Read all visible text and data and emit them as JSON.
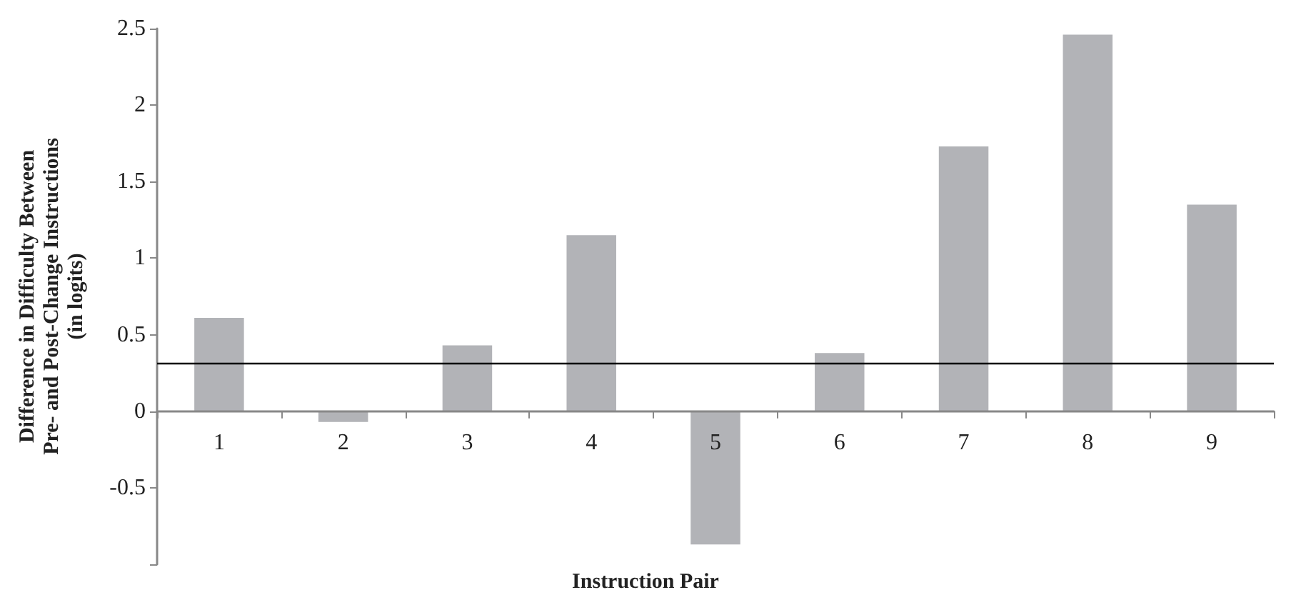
{
  "chart_data": {
    "type": "bar",
    "xlabel": "Instruction Pair",
    "ylabel": "Difference in Difficulty Between Pre- and Post-Change Instructions (in logits)",
    "categories": [
      "1",
      "2",
      "3",
      "4",
      "5",
      "6",
      "7",
      "8",
      "9"
    ],
    "values": [
      0.61,
      -0.07,
      0.43,
      1.15,
      -0.87,
      0.38,
      1.73,
      2.46,
      1.35
    ],
    "color": "#b2b3b7",
    "ylim": [
      -1,
      2.5
    ],
    "yticks": [
      {
        "value": -1,
        "label": null
      },
      -0.5,
      0,
      0.5,
      1,
      1.5,
      2,
      2.5
    ],
    "ref_lines": [
      {
        "axis": "y",
        "value": 0.31,
        "color": "#000000",
        "line_style": "solid"
      }
    ],
    "grid": false
  }
}
